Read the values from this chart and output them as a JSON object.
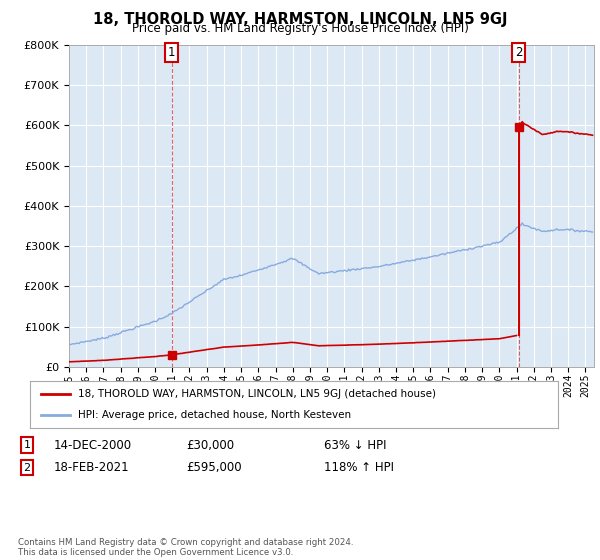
{
  "title": "18, THOROLD WAY, HARMSTON, LINCOLN, LN5 9GJ",
  "subtitle": "Price paid vs. HM Land Registry's House Price Index (HPI)",
  "property_label": "18, THOROLD WAY, HARMSTON, LINCOLN, LN5 9GJ (detached house)",
  "hpi_label": "HPI: Average price, detached house, North Kesteven",
  "annotation1_date": "14-DEC-2000",
  "annotation1_price": "£30,000",
  "annotation1_pct": "63% ↓ HPI",
  "annotation2_date": "18-FEB-2021",
  "annotation2_price": "£595,000",
  "annotation2_pct": "118% ↑ HPI",
  "footnote": "Contains HM Land Registry data © Crown copyright and database right 2024.\nThis data is licensed under the Open Government Licence v3.0.",
  "sale1_year": 2000.96,
  "sale1_price": 30000,
  "sale2_year": 2021.12,
  "sale2_price": 595000,
  "property_color": "#cc0000",
  "hpi_color": "#88aadd",
  "plot_bg_color": "#dce9f5",
  "ylim": [
    0,
    800000
  ],
  "xlim_start": 1995,
  "xlim_end": 2025.5,
  "background_color": "#ffffff",
  "grid_color": "#ffffff"
}
